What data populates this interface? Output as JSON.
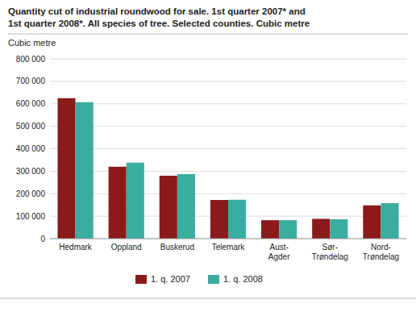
{
  "chart_data": {
    "type": "bar",
    "title": "Quantity cut of industrial roundwood for sale. 1st quarter 2007* and\n1st quarter 2008*. All species of tree. Selected counties. Cubic metre",
    "ylabel": "Cubic metre",
    "categories": [
      "Hedmark",
      "Oppland",
      "Buskerud",
      "Telemark",
      "Aust-\nAgder",
      "Sør-\nTrøndelag",
      "Nord-\nTrøndelag"
    ],
    "series": [
      {
        "name": "1. q. 2007",
        "color": "#8B1A1A",
        "values": [
          625000,
          320000,
          280000,
          172000,
          82000,
          88000,
          148000
        ]
      },
      {
        "name": "1. q. 2008",
        "color": "#3AADA0",
        "values": [
          607000,
          338000,
          287000,
          173000,
          82000,
          86000,
          158000
        ]
      }
    ],
    "ylim": [
      0,
      800000
    ],
    "yticks": [
      0,
      {
        "value": 100000,
        "label": "100 000"
      },
      {
        "value": 200000,
        "label": "200 000"
      },
      {
        "value": 300000,
        "label": "300 000"
      },
      {
        "value": 400000,
        "label": "400 000"
      },
      {
        "value": 500000,
        "label": "500 000"
      },
      {
        "value": 600000,
        "label": "600 000"
      },
      {
        "value": 700000,
        "label": "700 000"
      },
      {
        "value": 800000,
        "label": "800 000"
      }
    ],
    "grid": true,
    "legend": "bottom"
  }
}
